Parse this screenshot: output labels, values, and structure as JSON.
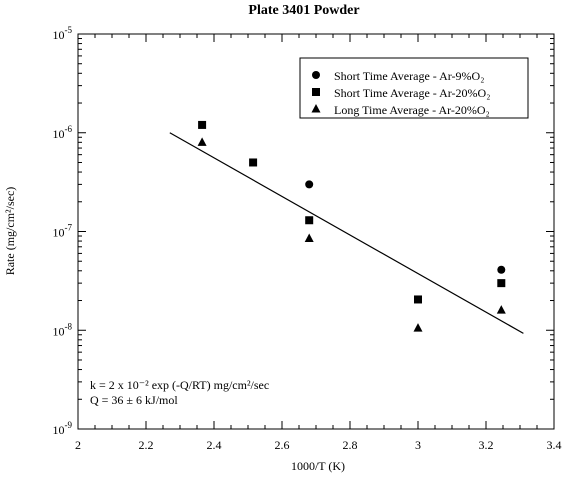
{
  "chart_data": {
    "type": "scatter",
    "title": "Plate  3401  Powder",
    "xlabel": "1000/T (K)",
    "ylabel": "Rate (mg/cm²/sec)",
    "xlim": [
      2,
      3.4
    ],
    "ylim": [
      1e-09,
      1e-05
    ],
    "y_scale": "log",
    "x_ticks": [
      2,
      2.2,
      2.4,
      2.6,
      2.8,
      3,
      3.2,
      3.4
    ],
    "x_tick_labels": [
      "2",
      "2.2",
      "2.4",
      "2.6",
      "2.8",
      "3",
      "3.2",
      "3.4"
    ],
    "y_ticks": [
      -9,
      -8,
      -7,
      -6,
      -5
    ],
    "grid": false,
    "legend_position": "top-right",
    "series": [
      {
        "name": "Short Time Average - Ar-9%O₂",
        "marker": "circle",
        "x": [
          2.68,
          3.245
        ],
        "y": [
          3e-07,
          4.1e-08
        ]
      },
      {
        "name": "Short Time Average - Ar-20%O₂",
        "marker": "square",
        "x": [
          2.365,
          2.515,
          2.68,
          3.0,
          3.245
        ],
        "y": [
          1.2e-06,
          5e-07,
          1.3e-07,
          2.05e-08,
          3e-08
        ]
      },
      {
        "name": "Long Time Average - Ar-20%O₂",
        "marker": "triangle",
        "x": [
          2.365,
          2.68,
          3.0,
          3.245
        ],
        "y": [
          8e-07,
          8.5e-08,
          1.05e-08,
          1.6e-08
        ]
      }
    ],
    "fit_line": {
      "x": [
        2.27,
        3.31
      ],
      "y": [
        1e-06,
        9.3e-09
      ]
    },
    "annotations": [
      "k = 2 x 10⁻² exp (-Q/RT) mg/cm²/sec",
      "Q = 36 ± 6 kJ/mol"
    ]
  }
}
